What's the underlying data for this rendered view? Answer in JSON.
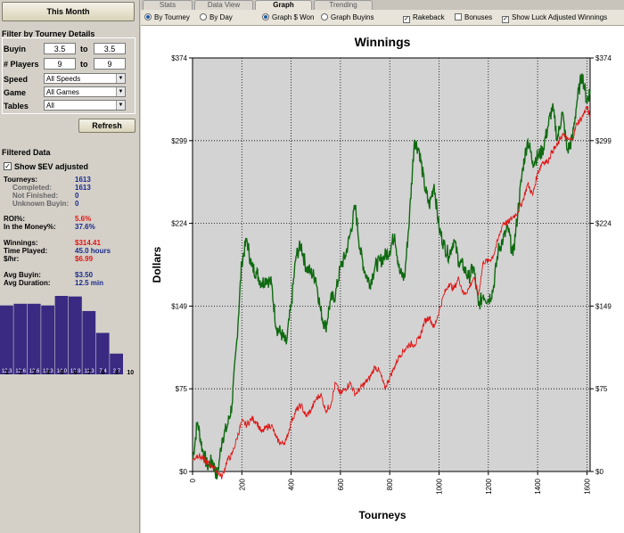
{
  "left": {
    "period_button": "This Month",
    "filter_title": "Filter by Tourney Details",
    "buyin_label": "Buyin",
    "buyin_from": "3.5",
    "buyin_to_label": "to",
    "buyin_to": "3.5",
    "players_label": "# Players",
    "players_from": "9",
    "players_to_label": "to",
    "players_to": "9",
    "speed_label": "Speed",
    "speed_value": "All Speeds",
    "game_label": "Game",
    "game_value": "All Games",
    "tables_label": "Tables",
    "tables_value": "All",
    "refresh_button": "Refresh",
    "filtered_title": "Filtered Data",
    "show_ev_label": "Show $EV adjusted",
    "show_ev_checked": true,
    "stats": {
      "tourneys_label": "Tourneys:",
      "tourneys": "1613",
      "completed_label": "Completed:",
      "completed": "1613",
      "not_finished_label": "Not Finished:",
      "not_finished": "0",
      "unknown_buyin_label": "Unknown Buyin:",
      "unknown_buyin": "0",
      "roi_label": "ROI%:",
      "roi": "5.6%",
      "itm_label": "In the Money%:",
      "itm": "37.6%",
      "winnings_label": "Winnings:",
      "winnings": "$314.41",
      "time_label": "Time Played:",
      "time": "45.0 hours",
      "hr_label": "$/hr:",
      "hr": "$6.99",
      "avg_buyin_label": "Avg Buyin:",
      "avg_buyin": "$3.50",
      "avg_duration_label": "Avg Duration:",
      "avg_duration": "12.5  min"
    },
    "histogram": {
      "places": [
        "1",
        "2",
        "3",
        "4",
        "5",
        "6",
        "7",
        "8",
        "9",
        "10"
      ],
      "values": [
        12.3,
        12.6,
        12.6,
        12.3,
        14.0,
        13.9,
        11.3,
        7.4,
        3.7
      ],
      "value_labels": [
        "12.3",
        "12.6",
        "12.6",
        "12.3",
        "14.0",
        "13.9",
        "11.3",
        "7.4",
        "3.7"
      ],
      "color": "#3a2a82"
    }
  },
  "tabs": [
    {
      "label": "Stats",
      "active": false
    },
    {
      "label": "Data View",
      "active": false
    },
    {
      "label": "Graph",
      "active": true
    },
    {
      "label": "Trending",
      "active": false
    }
  ],
  "options": {
    "by_tourney": "By Tourney",
    "by_tourney_on": true,
    "by_day": "By Day",
    "by_day_on": false,
    "graph_won": "Graph $ Won",
    "graph_won_on": true,
    "graph_buyins": "Graph Buyins",
    "graph_buyins_on": false,
    "rakeback": "Rakeback",
    "rakeback_on": true,
    "bonuses": "Bonuses",
    "bonuses_on": false,
    "luck_adjusted": "Show Luck Adjusted Winnings",
    "luck_adjusted_on": true
  },
  "chart_data": {
    "type": "line",
    "title": "Winnings",
    "xlabel": "Tourneys",
    "ylabel": "Dollars",
    "xlim": [
      0,
      1613
    ],
    "ylim": [
      0,
      374
    ],
    "x_ticks": [
      0,
      200,
      400,
      600,
      800,
      1000,
      1200,
      1400,
      1600
    ],
    "y_ticks": [
      "$0",
      "$75",
      "$149",
      "$224",
      "$299",
      "$374"
    ],
    "grid": true,
    "series": [
      {
        "color": "#0f6a10",
        "x": [
          0,
          20,
          40,
          60,
          80,
          100,
          120,
          140,
          160,
          180,
          200,
          220,
          240,
          260,
          280,
          300,
          320,
          340,
          360,
          380,
          400,
          420,
          440,
          460,
          480,
          500,
          520,
          540,
          560,
          580,
          600,
          620,
          640,
          660,
          680,
          700,
          720,
          740,
          760,
          780,
          800,
          820,
          840,
          860,
          880,
          900,
          920,
          940,
          960,
          980,
          1000,
          1020,
          1040,
          1060,
          1080,
          1100,
          1120,
          1140,
          1160,
          1180,
          1200,
          1220,
          1240,
          1260,
          1280,
          1300,
          1320,
          1340,
          1360,
          1380,
          1400,
          1420,
          1440,
          1460,
          1480,
          1500,
          1520,
          1540,
          1560,
          1580,
          1600,
          1613
        ],
        "y": [
          10,
          45,
          20,
          5,
          10,
          -5,
          30,
          40,
          60,
          120,
          190,
          210,
          185,
          180,
          170,
          175,
          170,
          130,
          125,
          115,
          150,
          195,
          205,
          185,
          180,
          175,
          145,
          130,
          155,
          160,
          185,
          195,
          215,
          240,
          200,
          180,
          170,
          185,
          190,
          195,
          200,
          215,
          180,
          175,
          230,
          300,
          290,
          260,
          240,
          260,
          220,
          205,
          195,
          210,
          190,
          185,
          175,
          185,
          150,
          160,
          155,
          165,
          200,
          210,
          220,
          195,
          235,
          275,
          300,
          280,
          285,
          290,
          310,
          330,
          300,
          325,
          290,
          300,
          335,
          360,
          335,
          345
        ]
      },
      {
        "color": "#e01414",
        "x": [
          0,
          20,
          40,
          60,
          80,
          100,
          120,
          140,
          160,
          180,
          200,
          220,
          240,
          260,
          280,
          300,
          320,
          340,
          360,
          380,
          400,
          420,
          440,
          460,
          480,
          500,
          520,
          540,
          560,
          580,
          600,
          620,
          640,
          660,
          680,
          700,
          720,
          740,
          760,
          780,
          800,
          820,
          840,
          860,
          880,
          900,
          920,
          940,
          960,
          980,
          1000,
          1020,
          1040,
          1060,
          1080,
          1100,
          1120,
          1140,
          1160,
          1180,
          1200,
          1220,
          1240,
          1260,
          1280,
          1300,
          1320,
          1340,
          1360,
          1380,
          1400,
          1420,
          1440,
          1460,
          1480,
          1500,
          1520,
          1540,
          1560,
          1580,
          1600,
          1613
        ],
        "y": [
          10,
          15,
          12,
          8,
          5,
          0,
          -5,
          10,
          15,
          30,
          45,
          42,
          48,
          45,
          35,
          40,
          42,
          30,
          25,
          28,
          45,
          55,
          60,
          50,
          55,
          65,
          70,
          55,
          60,
          80,
          70,
          75,
          80,
          70,
          75,
          80,
          85,
          95,
          90,
          75,
          85,
          95,
          105,
          110,
          115,
          115,
          120,
          135,
          140,
          130,
          145,
          160,
          170,
          165,
          175,
          160,
          165,
          175,
          160,
          190,
          190,
          195,
          210,
          225,
          225,
          230,
          235,
          245,
          260,
          250,
          270,
          280,
          280,
          290,
          295,
          305,
          300,
          300,
          315,
          320,
          330,
          320
        ]
      }
    ]
  }
}
